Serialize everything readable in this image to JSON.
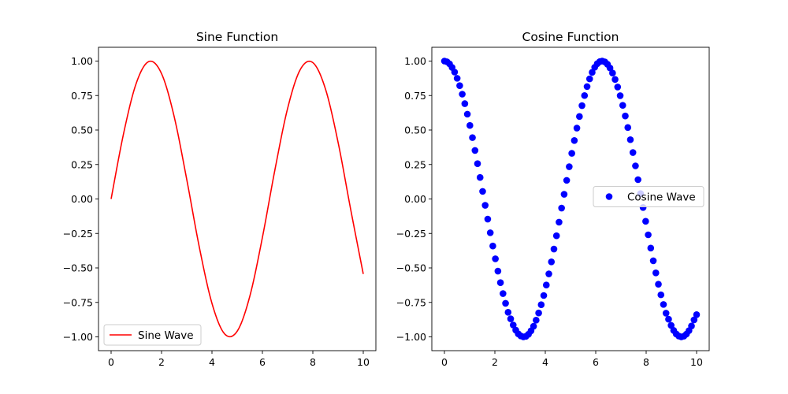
{
  "chart_data": [
    {
      "type": "line",
      "title": "Sine Function",
      "xlabel": "",
      "ylabel": "",
      "xlim": [
        -0.5,
        10.5
      ],
      "ylim": [
        -1.1,
        1.1
      ],
      "xticks": [
        0,
        2,
        4,
        6,
        8,
        10
      ],
      "xtick_labels": [
        "0",
        "2",
        "4",
        "6",
        "8",
        "10"
      ],
      "yticks": [
        1.0,
        0.75,
        0.5,
        0.25,
        0.0,
        -0.25,
        -0.5,
        -0.75,
        -1.0
      ],
      "ytick_labels": [
        "1.00",
        "0.75",
        "0.50",
        "0.25",
        "0.00",
        "−0.25",
        "−0.50",
        "−0.75",
        "−1.00"
      ],
      "grid": false,
      "legend_position": "lower-left",
      "series": [
        {
          "name": "Sine Wave",
          "color": "#ff0000",
          "marker": "line",
          "x": [
            0,
            0.5,
            1,
            1.5,
            2,
            2.5,
            3,
            3.5,
            4,
            4.5,
            5,
            5.5,
            6,
            6.5,
            7,
            7.5,
            8,
            8.5,
            9,
            9.5,
            10
          ],
          "y": [
            0,
            0.479,
            0.841,
            0.997,
            0.909,
            0.598,
            0.141,
            -0.351,
            -0.757,
            -0.978,
            -0.959,
            -0.706,
            -0.279,
            0.215,
            0.657,
            0.938,
            0.989,
            0.798,
            0.412,
            -0.075,
            -0.544
          ]
        }
      ]
    },
    {
      "type": "scatter",
      "title": "Cosine Function",
      "xlabel": "",
      "ylabel": "",
      "xlim": [
        -0.5,
        10.5
      ],
      "ylim": [
        -1.1,
        1.1
      ],
      "xticks": [
        0,
        2,
        4,
        6,
        8,
        10
      ],
      "xtick_labels": [
        "0",
        "2",
        "4",
        "6",
        "8",
        "10"
      ],
      "yticks": [
        1.0,
        0.75,
        0.5,
        0.25,
        0.0,
        -0.25,
        -0.5,
        -0.75,
        -1.0
      ],
      "ytick_labels": [
        "1.00",
        "0.75",
        "0.50",
        "0.25",
        "0.00",
        "−0.25",
        "−0.50",
        "−0.75",
        "−1.00"
      ],
      "grid": false,
      "legend_position": "center-right",
      "series": [
        {
          "name": "Cosine Wave",
          "color": "#0000ff",
          "marker": "circle",
          "x": [
            0,
            0.101,
            0.202,
            0.303,
            0.404,
            0.505,
            0.606,
            0.707,
            0.808,
            0.909,
            1.01,
            1.111,
            1.212,
            1.313,
            1.414,
            1.515,
            1.616,
            1.717,
            1.818,
            1.919,
            2.02,
            2.121,
            2.222,
            2.323,
            2.424,
            2.525,
            2.626,
            2.727,
            2.828,
            2.929,
            3.03,
            3.131,
            3.232,
            3.333,
            3.434,
            3.535,
            3.636,
            3.737,
            3.838,
            3.939,
            4.04,
            4.141,
            4.242,
            4.343,
            4.444,
            4.545,
            4.646,
            4.747,
            4.848,
            4.949,
            5.051,
            5.152,
            5.253,
            5.354,
            5.455,
            5.556,
            5.657,
            5.758,
            5.859,
            5.96,
            6.061,
            6.162,
            6.263,
            6.364,
            6.465,
            6.566,
            6.667,
            6.768,
            6.869,
            6.97,
            7.071,
            7.172,
            7.273,
            7.374,
            7.475,
            7.576,
            7.677,
            7.778,
            7.879,
            7.98,
            8.081,
            8.182,
            8.283,
            8.384,
            8.485,
            8.586,
            8.687,
            8.788,
            8.889,
            8.99,
            9.091,
            9.192,
            9.293,
            9.394,
            9.495,
            9.596,
            9.697,
            9.798,
            9.899,
            10
          ],
          "y": [
            1.0,
            0.995,
            0.98,
            0.954,
            0.92,
            0.875,
            0.822,
            0.76,
            0.691,
            0.615,
            0.533,
            0.445,
            0.352,
            0.256,
            0.156,
            0.055,
            -0.046,
            -0.146,
            -0.245,
            -0.341,
            -0.434,
            -0.523,
            -0.607,
            -0.686,
            -0.757,
            -0.822,
            -0.869,
            -0.914,
            -0.951,
            -0.978,
            -0.993,
            -1.0,
            -0.996,
            -0.981,
            -0.956,
            -0.923,
            -0.879,
            -0.827,
            -0.767,
            -0.7,
            -0.624,
            -0.543,
            -0.456,
            -0.363,
            -0.267,
            -0.168,
            -0.066,
            0.034,
            0.135,
            0.234,
            0.331,
            0.424,
            0.514,
            0.598,
            0.677,
            0.75,
            0.815,
            0.871,
            0.918,
            0.955,
            0.981,
            0.996,
            1.0,
            0.994,
            0.977,
            0.95,
            0.913,
            0.867,
            0.812,
            0.749,
            0.679,
            0.602,
            0.518,
            0.43,
            0.337,
            0.24,
            0.14,
            0.039,
            -0.062,
            -0.162,
            -0.26,
            -0.356,
            -0.448,
            -0.536,
            -0.618,
            -0.695,
            -0.765,
            -0.828,
            -0.872,
            -0.917,
            -0.953,
            -0.979,
            -0.994,
            -1.0,
            -0.995,
            -0.98,
            -0.955,
            -0.921,
            -0.877,
            -0.839
          ]
        }
      ]
    }
  ]
}
